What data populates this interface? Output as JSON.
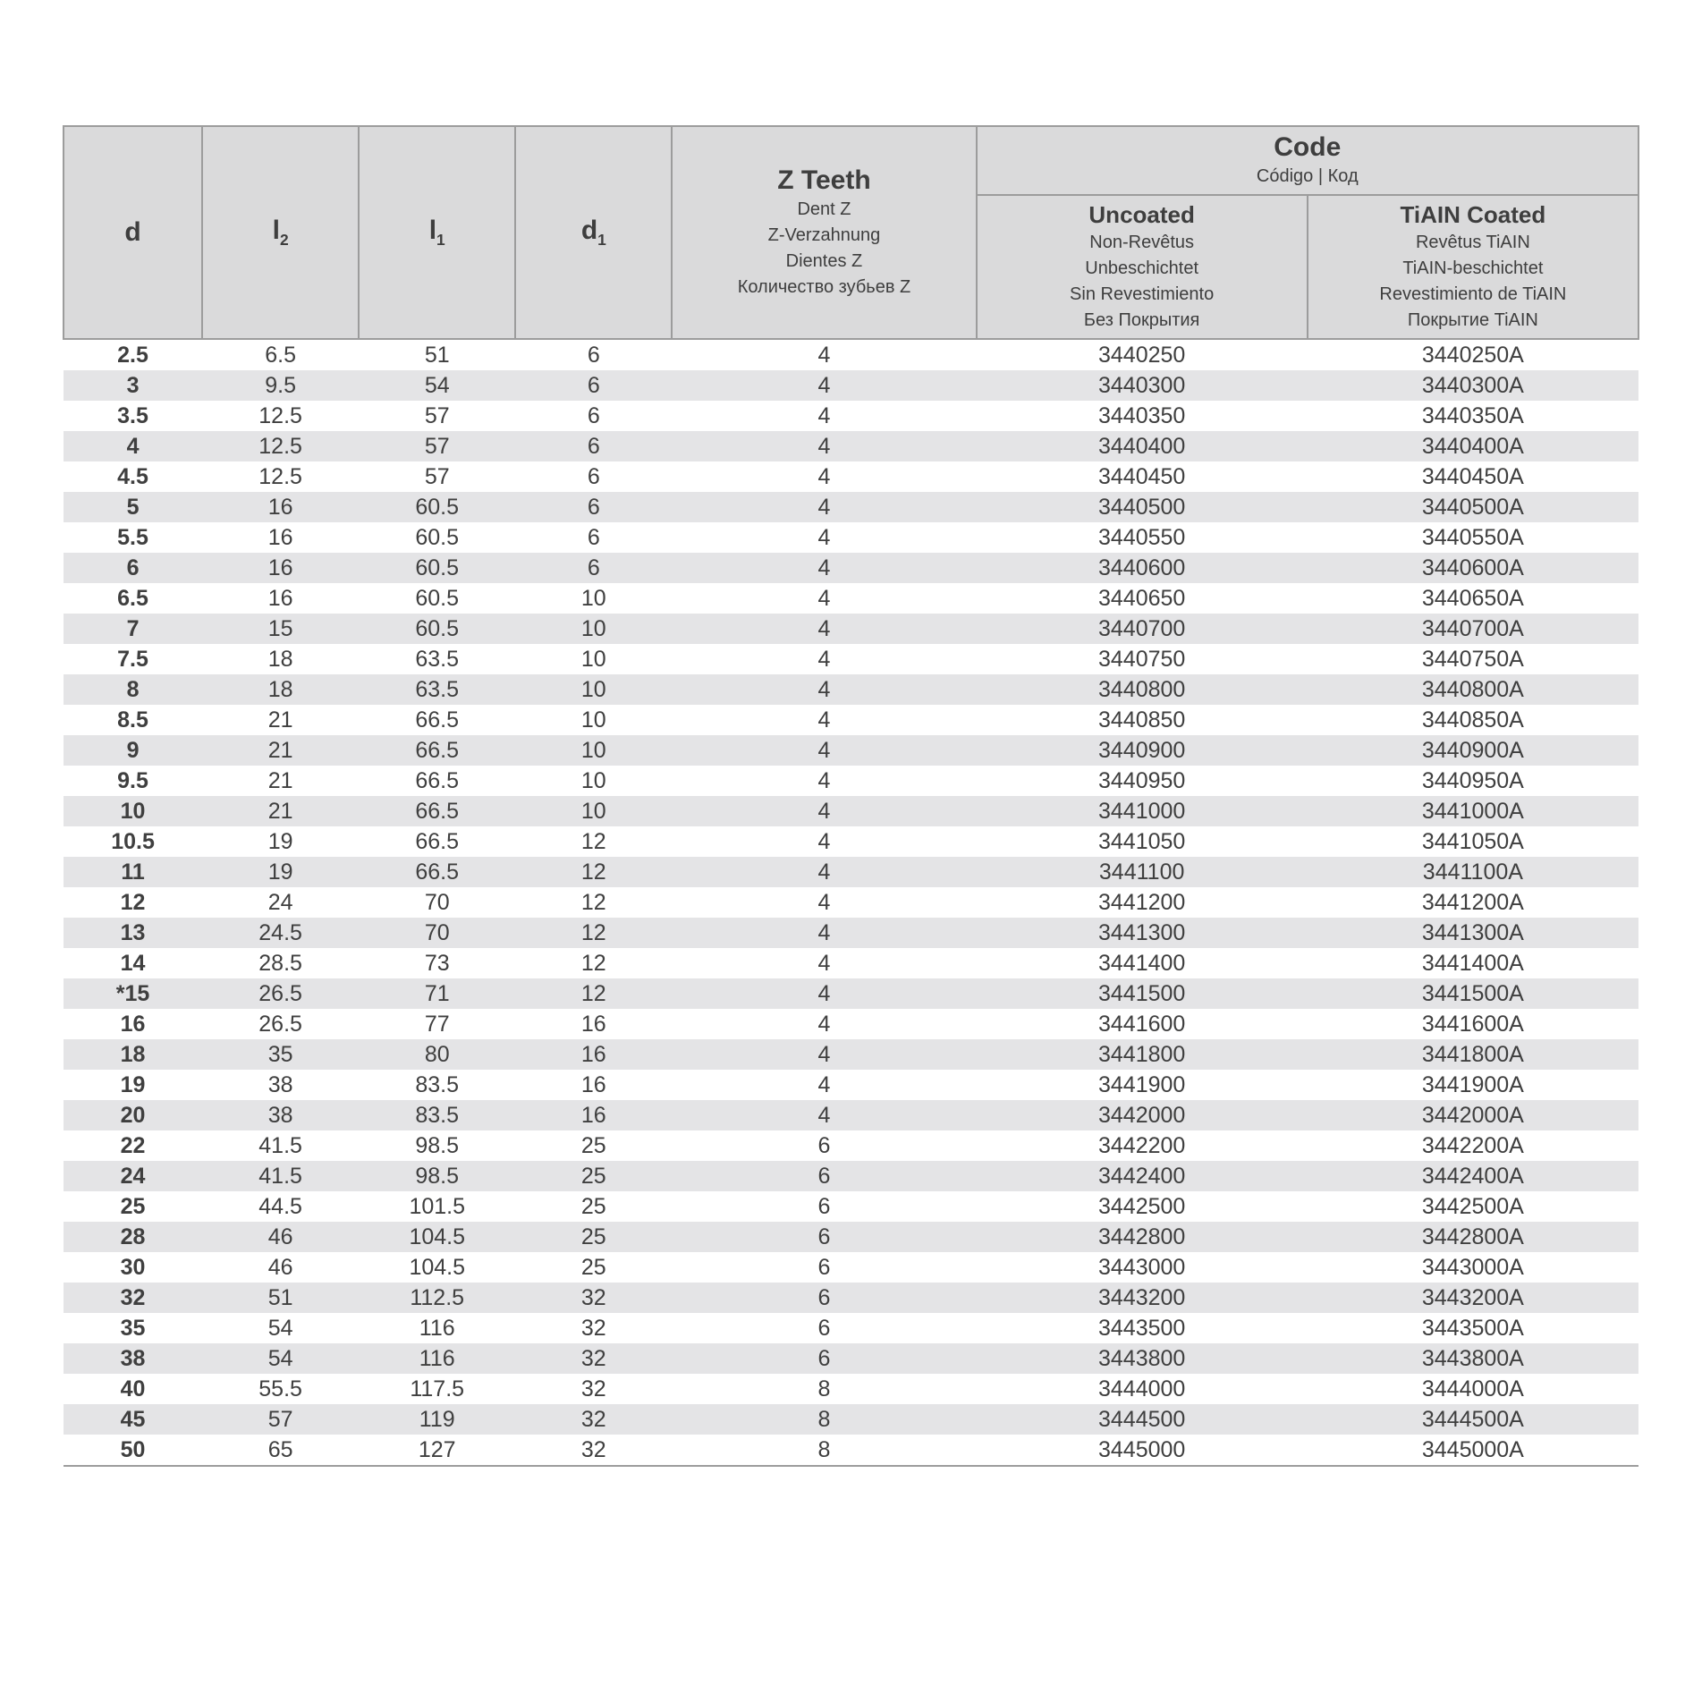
{
  "table": {
    "header": {
      "d": "d",
      "l2": {
        "label": "l",
        "sub": "2"
      },
      "l1": {
        "label": "l",
        "sub": "1"
      },
      "d1": {
        "label": "d",
        "sub": "1"
      },
      "zteeth": {
        "main": "Z Teeth",
        "lines": [
          "Dent Z",
          "Z-Verzahnung",
          "Dientes Z",
          "Количество зубьев Z"
        ]
      },
      "code": {
        "main": "Code",
        "sub": "Código | Код"
      },
      "uncoated": {
        "main": "Uncoated",
        "lines": [
          "Non-Revêtus",
          "Unbeschichtet",
          "Sin Revestimiento",
          "Без Покрытия"
        ]
      },
      "tialn": {
        "main": "TiAIN Coated",
        "lines": [
          "Revêtus TiAIN",
          "TiAIN-beschichtet",
          "Revestimiento de TiAIN",
          "Покрытие TiAIN"
        ]
      }
    },
    "columns": [
      "d",
      "l2",
      "l1",
      "d1",
      "z",
      "uncoated",
      "tialn"
    ],
    "rows": [
      [
        "2.5",
        "6.5",
        "51",
        "6",
        "4",
        "3440250",
        "3440250A"
      ],
      [
        "3",
        "9.5",
        "54",
        "6",
        "4",
        "3440300",
        "3440300A"
      ],
      [
        "3.5",
        "12.5",
        "57",
        "6",
        "4",
        "3440350",
        "3440350A"
      ],
      [
        "4",
        "12.5",
        "57",
        "6",
        "4",
        "3440400",
        "3440400A"
      ],
      [
        "4.5",
        "12.5",
        "57",
        "6",
        "4",
        "3440450",
        "3440450A"
      ],
      [
        "5",
        "16",
        "60.5",
        "6",
        "4",
        "3440500",
        "3440500A"
      ],
      [
        "5.5",
        "16",
        "60.5",
        "6",
        "4",
        "3440550",
        "3440550A"
      ],
      [
        "6",
        "16",
        "60.5",
        "6",
        "4",
        "3440600",
        "3440600A"
      ],
      [
        "6.5",
        "16",
        "60.5",
        "10",
        "4",
        "3440650",
        "3440650A"
      ],
      [
        "7",
        "15",
        "60.5",
        "10",
        "4",
        "3440700",
        "3440700A"
      ],
      [
        "7.5",
        "18",
        "63.5",
        "10",
        "4",
        "3440750",
        "3440750A"
      ],
      [
        "8",
        "18",
        "63.5",
        "10",
        "4",
        "3440800",
        "3440800A"
      ],
      [
        "8.5",
        "21",
        "66.5",
        "10",
        "4",
        "3440850",
        "3440850A"
      ],
      [
        "9",
        "21",
        "66.5",
        "10",
        "4",
        "3440900",
        "3440900A"
      ],
      [
        "9.5",
        "21",
        "66.5",
        "10",
        "4",
        "3440950",
        "3440950A"
      ],
      [
        "10",
        "21",
        "66.5",
        "10",
        "4",
        "3441000",
        "3441000A"
      ],
      [
        "10.5",
        "19",
        "66.5",
        "12",
        "4",
        "3441050",
        "3441050A"
      ],
      [
        "11",
        "19",
        "66.5",
        "12",
        "4",
        "3441100",
        "3441100A"
      ],
      [
        "12",
        "24",
        "70",
        "12",
        "4",
        "3441200",
        "3441200A"
      ],
      [
        "13",
        "24.5",
        "70",
        "12",
        "4",
        "3441300",
        "3441300A"
      ],
      [
        "14",
        "28.5",
        "73",
        "12",
        "4",
        "3441400",
        "3441400A"
      ],
      [
        "*15",
        "26.5",
        "71",
        "12",
        "4",
        "3441500",
        "3441500A"
      ],
      [
        "16",
        "26.5",
        "77",
        "16",
        "4",
        "3441600",
        "3441600A"
      ],
      [
        "18",
        "35",
        "80",
        "16",
        "4",
        "3441800",
        "3441800A"
      ],
      [
        "19",
        "38",
        "83.5",
        "16",
        "4",
        "3441900",
        "3441900A"
      ],
      [
        "20",
        "38",
        "83.5",
        "16",
        "4",
        "3442000",
        "3442000A"
      ],
      [
        "22",
        "41.5",
        "98.5",
        "25",
        "6",
        "3442200",
        "3442200A"
      ],
      [
        "24",
        "41.5",
        "98.5",
        "25",
        "6",
        "3442400",
        "3442400A"
      ],
      [
        "25",
        "44.5",
        "101.5",
        "25",
        "6",
        "3442500",
        "3442500A"
      ],
      [
        "28",
        "46",
        "104.5",
        "25",
        "6",
        "3442800",
        "3442800A"
      ],
      [
        "30",
        "46",
        "104.5",
        "25",
        "6",
        "3443000",
        "3443000A"
      ],
      [
        "32",
        "51",
        "112.5",
        "32",
        "6",
        "3443200",
        "3443200A"
      ],
      [
        "35",
        "54",
        "116",
        "32",
        "6",
        "3443500",
        "3443500A"
      ],
      [
        "38",
        "54",
        "116",
        "32",
        "6",
        "3443800",
        "3443800A"
      ],
      [
        "40",
        "55.5",
        "117.5",
        "32",
        "8",
        "3444000",
        "3444000A"
      ],
      [
        "45",
        "57",
        "119",
        "32",
        "8",
        "3444500",
        "3444500A"
      ],
      [
        "50",
        "65",
        "127",
        "32",
        "8",
        "3445000",
        "3445000A"
      ]
    ],
    "styling": {
      "header_bg": "#dadadb",
      "border_color": "#9c9c9c",
      "row_alt_bg": "#e4e4e6",
      "row_bg": "#ffffff",
      "text_color": "#3e3e3e",
      "header_fontsize_main": 30,
      "header_fontsize_sub": 20,
      "body_fontsize": 25,
      "font_family": "Arial"
    }
  }
}
